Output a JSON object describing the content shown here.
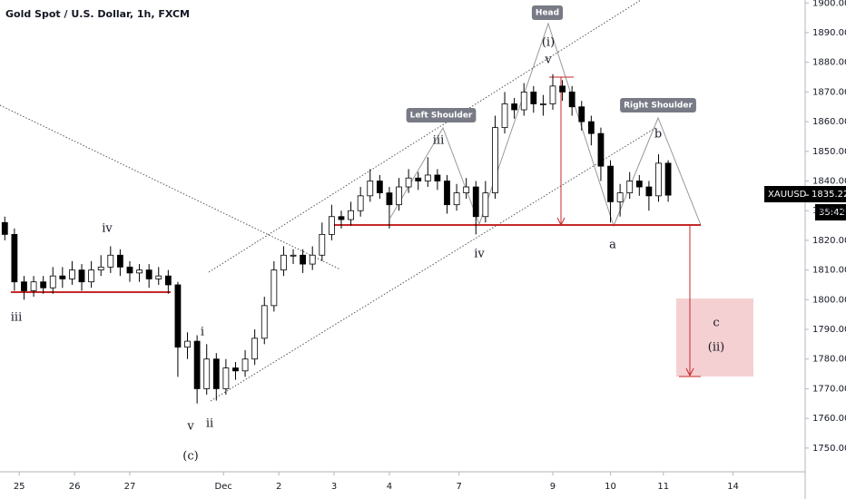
{
  "chart_data": {
    "type": "candlestick",
    "title": "Gold Spot / U.S. Dollar, 1h, FXCM",
    "symbol": "XAUUSD",
    "last_price": {
      "value": 1835.22,
      "label": "1835.22"
    },
    "countdown": "35:42",
    "up_color": "#ffffff",
    "down_color": "#000000",
    "x": [
      -6,
      -2,
      2,
      6,
      10,
      14,
      18,
      22,
      26,
      30,
      34,
      38,
      42,
      46,
      50,
      54,
      58,
      62,
      66,
      70,
      74,
      78,
      82,
      86,
      90,
      94,
      98,
      102,
      106,
      110,
      114,
      118,
      122,
      126,
      130,
      134,
      138,
      142,
      146,
      150,
      154,
      158,
      162,
      166,
      170,
      174,
      178,
      182,
      186,
      190,
      194,
      198,
      202,
      206,
      210,
      214,
      218,
      222,
      226,
      230,
      234,
      238,
      242,
      246,
      250,
      254,
      258,
      262,
      266,
      270
    ],
    "open": [
      1826,
      1822,
      1806,
      1803,
      1806,
      1804,
      1808,
      1807,
      1810,
      1806,
      1810,
      1811,
      1815,
      1811,
      1809,
      1810,
      1807,
      1808,
      1805,
      1784,
      1786,
      1770,
      1780,
      1770,
      1777,
      1776,
      1780,
      1787,
      1798,
      1810,
      1815,
      1815,
      1812,
      1815,
      1822,
      1828,
      1827,
      1830,
      1835,
      1840,
      1836,
      1832,
      1838,
      1841,
      1840,
      1842,
      1840,
      1832,
      1836,
      1838,
      1828,
      1836,
      1858,
      1866,
      1864,
      1870,
      1866,
      1866,
      1872,
      1870,
      1865,
      1860,
      1856,
      1845,
      1833,
      1836,
      1840,
      1838,
      1835,
      1846
    ],
    "high": [
      1828,
      1824,
      1808,
      1808,
      1808,
      1811,
      1811,
      1813,
      1812,
      1813,
      1815,
      1818,
      1817,
      1813,
      1812,
      1812,
      1811,
      1810,
      1806,
      1789,
      1788,
      1785,
      1782,
      1780,
      1779,
      1783,
      1790,
      1801,
      1813,
      1818,
      1817,
      1817,
      1818,
      1826,
      1832,
      1830,
      1833,
      1838,
      1844,
      1842,
      1838,
      1841,
      1844,
      1843,
      1848,
      1844,
      1842,
      1839,
      1841,
      1840,
      1840,
      1862,
      1870,
      1868,
      1873,
      1872,
      1869,
      1876,
      1874,
      1872,
      1867,
      1862,
      1858,
      1847,
      1839,
      1843,
      1842,
      1840,
      1849,
      1847
    ],
    "low": [
      1820,
      1803,
      1800,
      1801,
      1802,
      1802,
      1804,
      1805,
      1803,
      1804,
      1808,
      1809,
      1808,
      1806,
      1806,
      1804,
      1805,
      1802,
      1774,
      1780,
      1765,
      1768,
      1766,
      1768,
      1773,
      1774,
      1778,
      1785,
      1796,
      1808,
      1812,
      1809,
      1810,
      1813,
      1820,
      1824,
      1825,
      1828,
      1833,
      1834,
      1824,
      1830,
      1836,
      1837,
      1838,
      1837,
      1829,
      1830,
      1834,
      1822,
      1826,
      1834,
      1856,
      1861,
      1862,
      1863,
      1862,
      1864,
      1867,
      1862,
      1857,
      1852,
      1840,
      1826,
      1828,
      1834,
      1835,
      1830,
      1833,
      1833
    ],
    "close": [
      1822,
      1806,
      1803,
      1806,
      1804,
      1808,
      1807,
      1810,
      1806,
      1810,
      1811,
      1815,
      1811,
      1809,
      1810,
      1807,
      1808,
      1805,
      1784,
      1786,
      1770,
      1780,
      1770,
      1777,
      1776,
      1780,
      1787,
      1798,
      1810,
      1815,
      1815,
      1812,
      1815,
      1822,
      1828,
      1827,
      1830,
      1835,
      1840,
      1836,
      1832,
      1838,
      1841,
      1840,
      1842,
      1840,
      1832,
      1836,
      1838,
      1828,
      1836,
      1858,
      1866,
      1864,
      1870,
      1866,
      1866,
      1872,
      1870,
      1865,
      1860,
      1856,
      1845,
      1833,
      1836,
      1840,
      1838,
      1835,
      1846,
      1835.22
    ],
    "xlim": [
      -8,
      327
    ],
    "xticks": [
      {
        "value": 0,
        "label": "25"
      },
      {
        "value": 23,
        "label": "26"
      },
      {
        "value": 46,
        "label": "27"
      },
      {
        "value": 85,
        "label": "Dec"
      },
      {
        "value": 108,
        "label": "2"
      },
      {
        "value": 131,
        "label": "3"
      },
      {
        "value": 154,
        "label": "4"
      },
      {
        "value": 183,
        "label": "7"
      },
      {
        "value": 222,
        "label": "9"
      },
      {
        "value": 246,
        "label": "10"
      },
      {
        "value": 268,
        "label": "11"
      },
      {
        "value": 297,
        "label": "14"
      }
    ],
    "ylim": [
      1742,
      1901
    ],
    "yticks": [
      {
        "value": 1750,
        "label": "1750.00"
      },
      {
        "value": 1760,
        "label": "1760.00"
      },
      {
        "value": 1770,
        "label": "1770.00"
      },
      {
        "value": 1780,
        "label": "1780.00"
      },
      {
        "value": 1790,
        "label": "1790.00"
      },
      {
        "value": 1800,
        "label": "1800.00"
      },
      {
        "value": 1810,
        "label": "1810.00"
      },
      {
        "value": 1820,
        "label": "1820.00"
      },
      {
        "value": 1830,
        "label": "1830.00"
      },
      {
        "value": 1840,
        "label": "1840.00"
      },
      {
        "value": 1850,
        "label": "1850.00"
      },
      {
        "value": 1860,
        "label": "1860.00"
      },
      {
        "value": 1870,
        "label": "1870.00"
      },
      {
        "value": 1880,
        "label": "1880.00"
      },
      {
        "value": 1890,
        "label": "1890.00"
      },
      {
        "value": 1900,
        "label": "1900.00"
      }
    ],
    "annotations": [
      "iii",
      "iv",
      "v",
      "i",
      "ii",
      "(c)",
      "iii",
      "iv",
      "(i)",
      "v",
      "a",
      "b",
      "c",
      "(ii)"
    ],
    "badges": [
      "Left Shoulder",
      "Head",
      "Right Shoulder"
    ]
  }
}
